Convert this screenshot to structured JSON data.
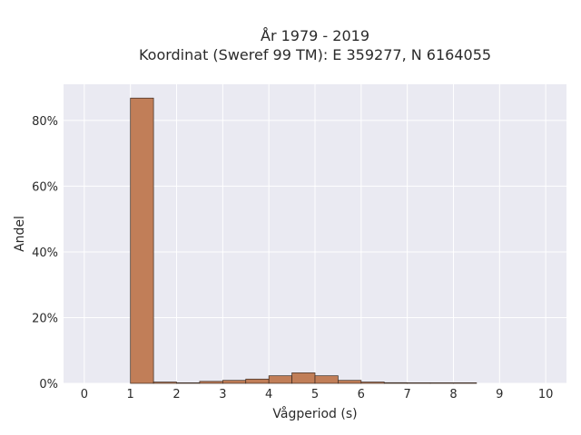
{
  "chart_data": {
    "type": "bar",
    "title_lines": [
      "År 1979 - 2019",
      "Koordinat (Sweref 99 TM): E 359277, N 6164055"
    ],
    "xlabel": "Vågperiod (s)",
    "ylabel": "Andel",
    "xlim": [
      -0.45,
      10.45
    ],
    "ylim": [
      0,
      0.91
    ],
    "xticks": [
      0,
      1,
      2,
      3,
      4,
      5,
      6,
      7,
      8,
      9,
      10
    ],
    "yticks": [
      0,
      0.2,
      0.4,
      0.6,
      0.8
    ],
    "ytick_labels": [
      "0%",
      "20%",
      "40%",
      "60%",
      "80%"
    ],
    "grid": true,
    "bin_width": 0.5,
    "bins": [
      {
        "x0": 1.0,
        "value": 0.868
      },
      {
        "x0": 1.5,
        "value": 0.004
      },
      {
        "x0": 2.0,
        "value": 0.001
      },
      {
        "x0": 2.5,
        "value": 0.006
      },
      {
        "x0": 3.0,
        "value": 0.009
      },
      {
        "x0": 3.5,
        "value": 0.013
      },
      {
        "x0": 4.0,
        "value": 0.023
      },
      {
        "x0": 4.5,
        "value": 0.032
      },
      {
        "x0": 5.0,
        "value": 0.023
      },
      {
        "x0": 5.5,
        "value": 0.009
      },
      {
        "x0": 6.0,
        "value": 0.004
      },
      {
        "x0": 6.5,
        "value": 0.002
      },
      {
        "x0": 7.0,
        "value": 0.001
      },
      {
        "x0": 7.5,
        "value": 0.001
      },
      {
        "x0": 8.0,
        "value": 0.0005
      }
    ],
    "colors": {
      "bar_fill": "#c17e58",
      "bar_stroke": "#3a2a20",
      "plot_background": "#eaeaf2",
      "grid": "#ffffff"
    }
  }
}
